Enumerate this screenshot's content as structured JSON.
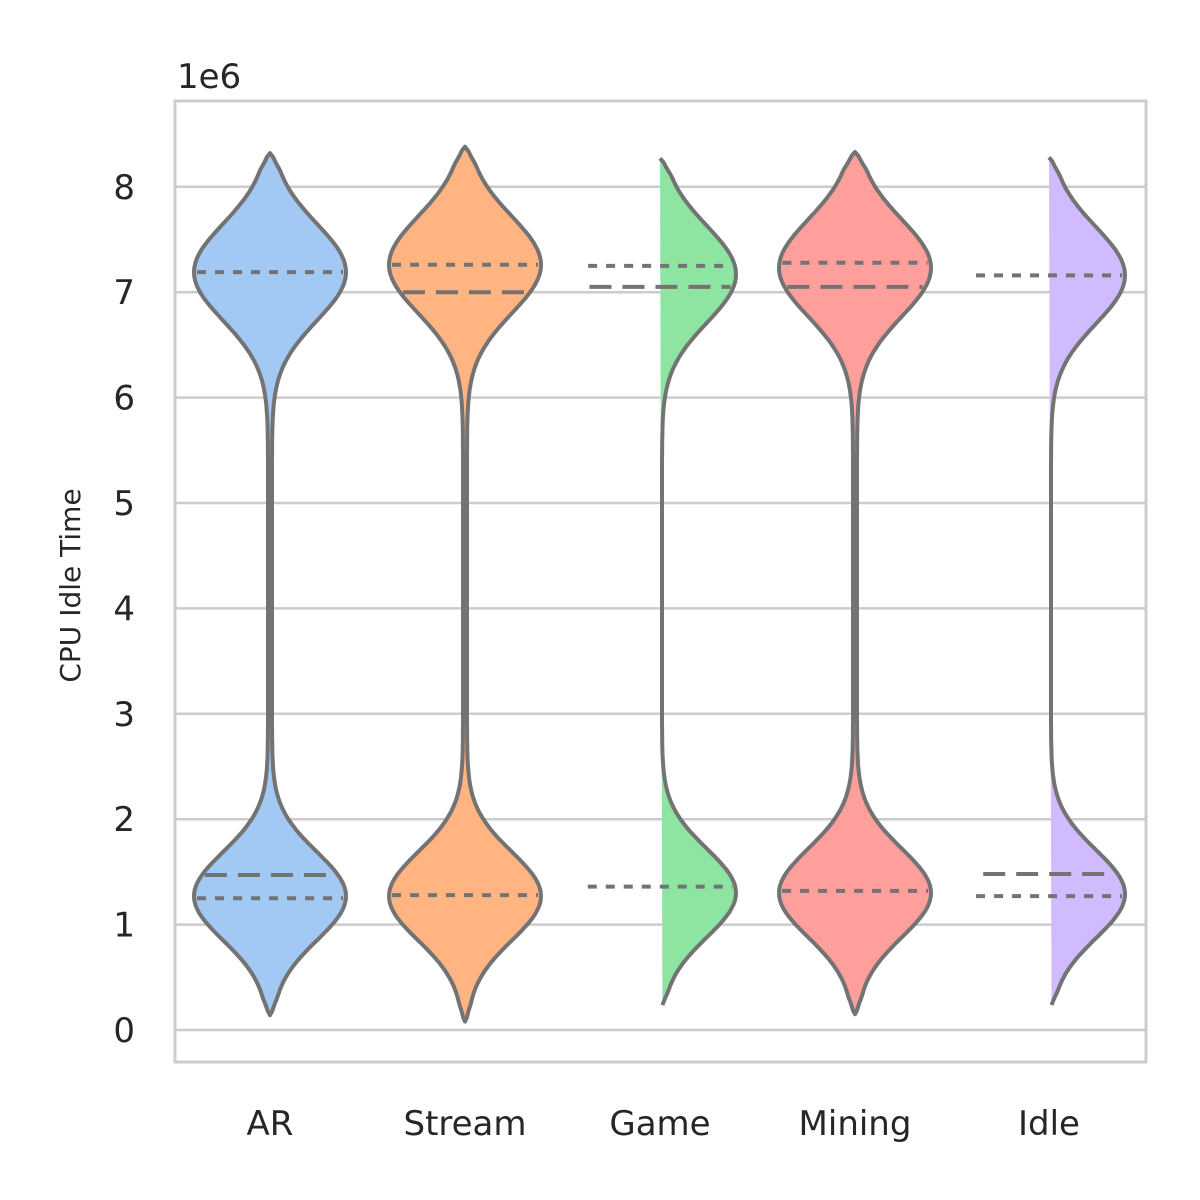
{
  "chart_data": {
    "type": "violin",
    "title": "",
    "xlabel": "",
    "ylabel": "CPU Idle Time",
    "y_offset_label": "1e6",
    "ylim": [
      -0.3,
      8.8
    ],
    "y_ticks": [
      0,
      1,
      2,
      3,
      4,
      5,
      6,
      7,
      8
    ],
    "grid": true,
    "legend": "none",
    "inner": "quartile",
    "outline_color": "#737373",
    "categories": [
      "AR",
      "Stream",
      "Game",
      "Mining",
      "Idle"
    ],
    "colors": [
      "#a1c9f4",
      "#ffb482",
      "#8de5a1",
      "#ff9f9b",
      "#d0bbff"
    ],
    "series": [
      {
        "category": "AR",
        "min": 0.14,
        "max": 8.32,
        "low_mode": 1.27,
        "high_mode": 7.19,
        "q1": 1.25,
        "median": 1.47,
        "q3": 7.19
      },
      {
        "category": "Stream",
        "min": 0.08,
        "max": 8.38,
        "low_mode": 1.27,
        "high_mode": 7.26,
        "q1": 1.28,
        "median": 7.0,
        "q3": 7.26
      },
      {
        "category": "Game",
        "min": 0.2,
        "max": 8.27,
        "low_mode": 1.3,
        "high_mode": 7.17,
        "q1": 1.36,
        "median": 7.05,
        "q3": 7.25
      },
      {
        "category": "Mining",
        "min": 0.15,
        "max": 8.33,
        "low_mode": 1.3,
        "high_mode": 7.23,
        "q1": 1.32,
        "median": 7.05,
        "q3": 7.28
      },
      {
        "category": "Idle",
        "min": 0.2,
        "max": 8.28,
        "low_mode": 1.29,
        "high_mode": 7.16,
        "q1": 1.27,
        "median": 1.48,
        "q3": 7.16
      }
    ]
  }
}
